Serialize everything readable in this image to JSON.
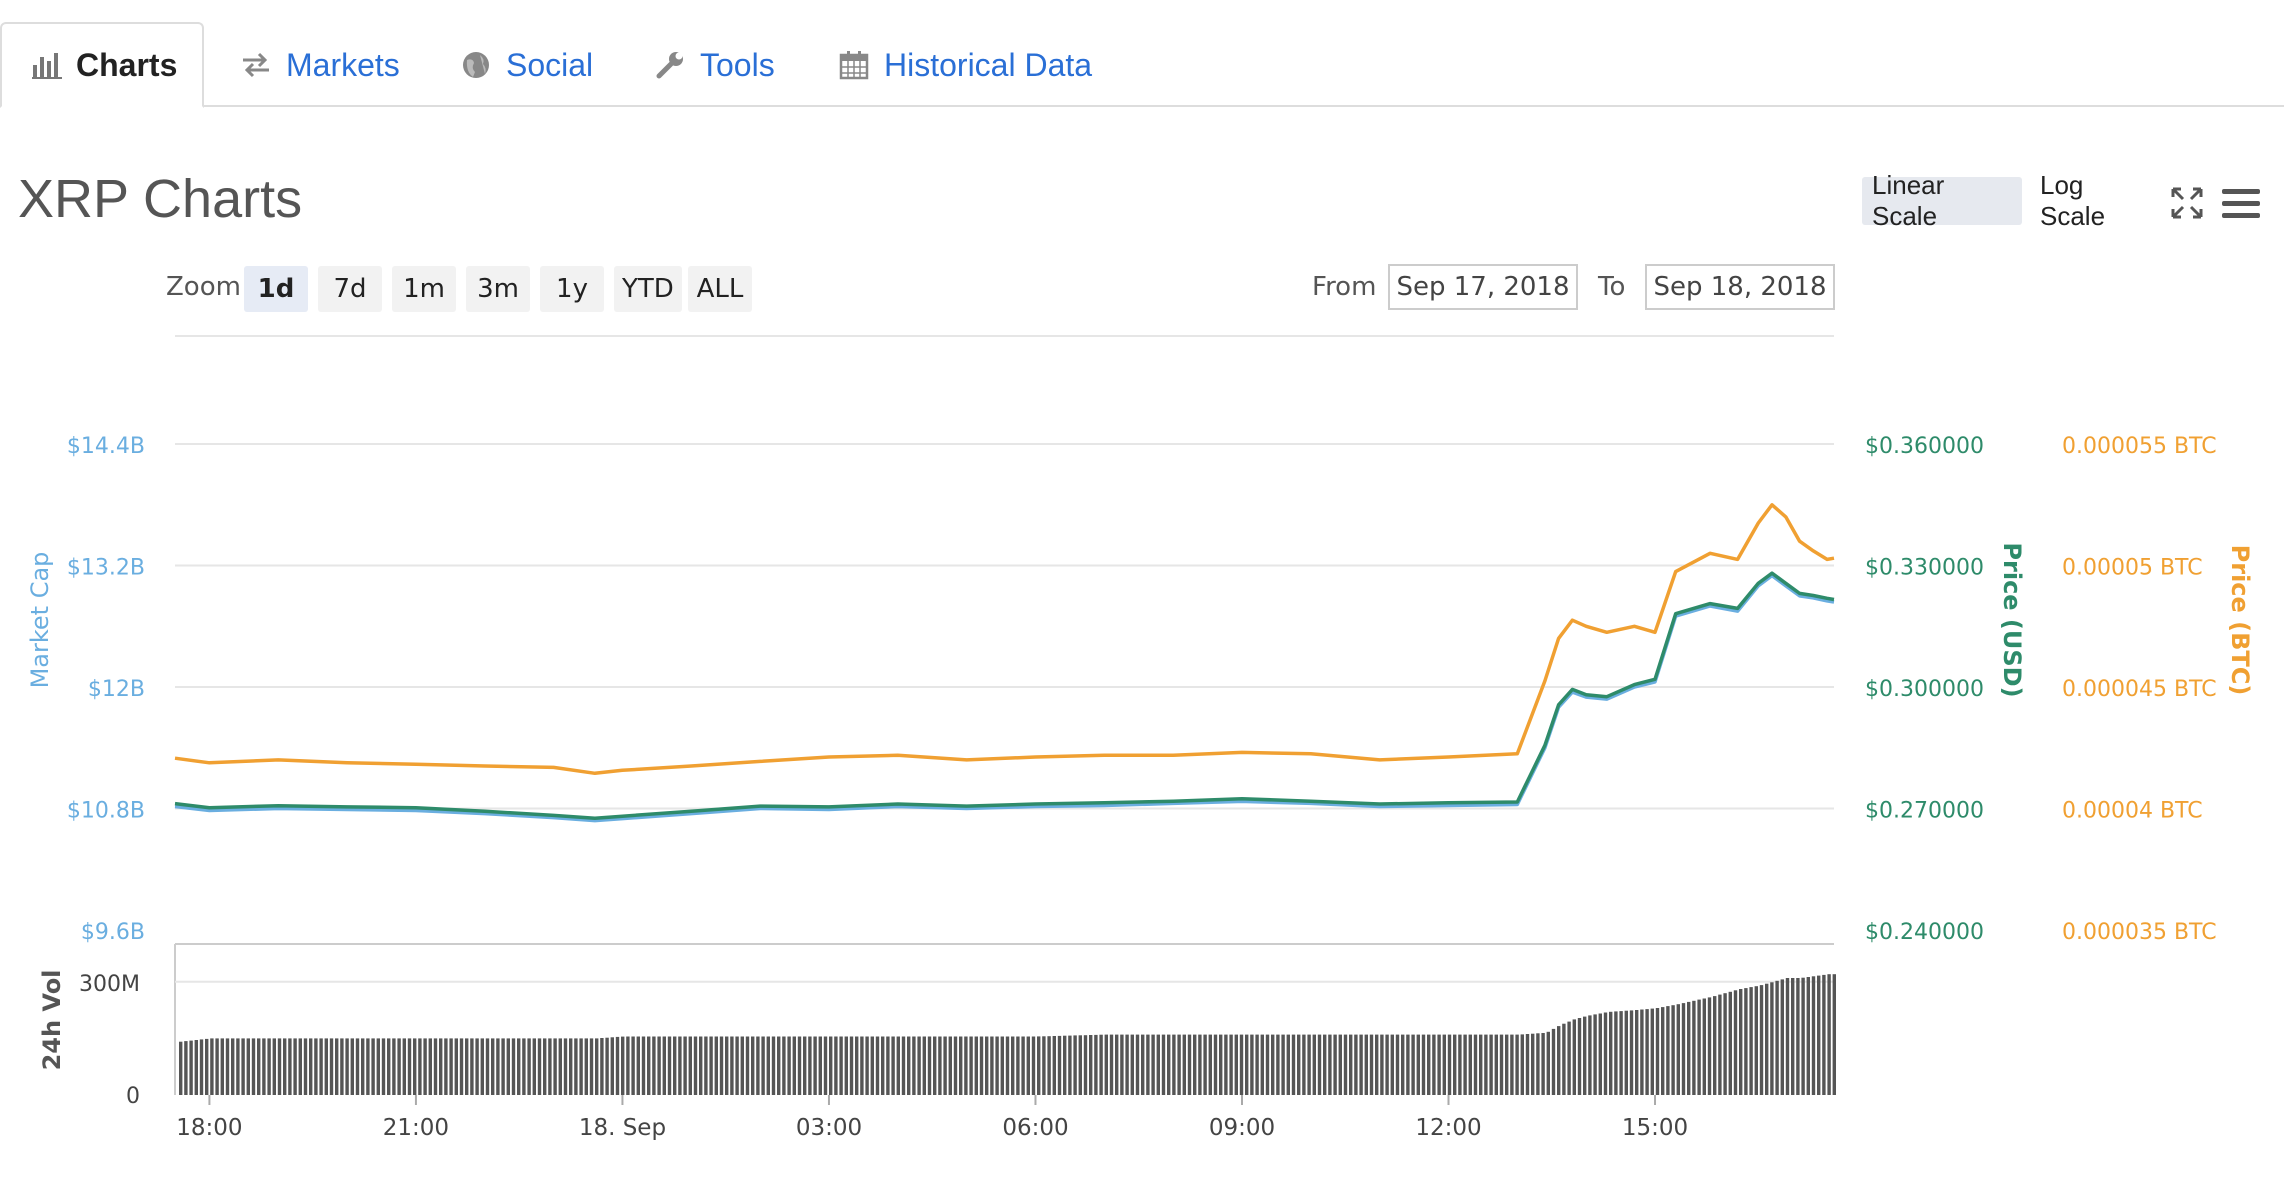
{
  "tabs": [
    {
      "label": "Charts",
      "icon": "bar-chart-icon",
      "active": true
    },
    {
      "label": "Markets",
      "icon": "exchange-arrows-icon",
      "active": false
    },
    {
      "label": "Social",
      "icon": "globe-icon",
      "active": false
    },
    {
      "label": "Tools",
      "icon": "wrench-icon",
      "active": false
    },
    {
      "label": "Historical Data",
      "icon": "calendar-icon",
      "active": false
    }
  ],
  "title": "XRP Charts",
  "scale": {
    "linear": "Linear Scale",
    "log": "Log Scale",
    "active": "linear"
  },
  "zoom": {
    "label": "Zoom",
    "options": [
      "1d",
      "7d",
      "1m",
      "3m",
      "1y",
      "YTD",
      "ALL"
    ],
    "active": "1d"
  },
  "range": {
    "from_label": "From",
    "from": "Sep 17, 2018",
    "to_label": "To",
    "to": "Sep 18, 2018"
  },
  "colors": {
    "market_cap": "#6aaee0",
    "price_usd": "#2e8b6a",
    "price_btc": "#f0a032",
    "volume": "#555555",
    "grid": "#e6e6e6",
    "tab_link": "#2a6fd6"
  },
  "chart_data": {
    "type": "line",
    "axes": {
      "market_cap": {
        "label": "Market Cap",
        "ticks": [
          "$14.4B",
          "$13.2B",
          "$12B",
          "$10.8B",
          "$9.6B"
        ],
        "range": [
          9.6,
          14.4
        ],
        "unit": "B USD"
      },
      "price_usd": {
        "label": "Price (USD)",
        "ticks": [
          "$0.360000",
          "$0.330000",
          "$0.300000",
          "$0.270000",
          "$0.240000"
        ],
        "range": [
          0.24,
          0.36
        ]
      },
      "price_btc": {
        "label": "Price (BTC)",
        "ticks": [
          "0.000055 BTC",
          "0.00005 BTC",
          "0.000045 BTC",
          "0.00004 BTC",
          "0.000035 BTC"
        ],
        "range": [
          3.5e-05,
          5.5e-05
        ]
      },
      "volume": {
        "label": "24h Vol",
        "ticks": [
          "300M",
          "0"
        ],
        "range": [
          0,
          400
        ]
      },
      "x": {
        "ticks": [
          "18:00",
          "21:00",
          "18. Sep",
          "03:00",
          "06:00",
          "09:00",
          "12:00",
          "15:00"
        ],
        "tick_hours": [
          18,
          21,
          24,
          27,
          30,
          33,
          36,
          39
        ],
        "range_hours": [
          17.5,
          41.6
        ]
      }
    },
    "x_hours": [
      17.5,
      18.0,
      19.0,
      20.0,
      21.0,
      22.0,
      23.0,
      23.6,
      24.0,
      25.0,
      26.0,
      27.0,
      28.0,
      29.0,
      30.0,
      31.0,
      32.0,
      33.0,
      34.0,
      35.0,
      36.0,
      37.0,
      37.4,
      37.6,
      37.8,
      38.0,
      38.3,
      38.7,
      39.0,
      39.3,
      39.8,
      40.2,
      40.5,
      40.7,
      40.9,
      41.1,
      41.3,
      41.5,
      41.6
    ],
    "series": [
      {
        "name": "Market Cap",
        "axis": "market_cap",
        "values": [
          10.82,
          10.78,
          10.8,
          10.79,
          10.78,
          10.75,
          10.71,
          10.68,
          10.7,
          10.75,
          10.8,
          10.79,
          10.82,
          10.8,
          10.82,
          10.83,
          10.85,
          10.87,
          10.85,
          10.82,
          10.83,
          10.84,
          11.4,
          11.8,
          11.95,
          11.9,
          11.88,
          12.0,
          12.05,
          12.7,
          12.8,
          12.75,
          13.0,
          13.1,
          13.0,
          12.9,
          12.88,
          12.85,
          12.84
        ]
      },
      {
        "name": "Price (USD)",
        "axis": "price_usd",
        "values": [
          0.2712,
          0.2702,
          0.2707,
          0.2704,
          0.2702,
          0.2693,
          0.2683,
          0.2676,
          0.2681,
          0.2693,
          0.2706,
          0.2704,
          0.2711,
          0.2706,
          0.2711,
          0.2714,
          0.2718,
          0.2724,
          0.2718,
          0.2711,
          0.2714,
          0.2716,
          0.2856,
          0.2956,
          0.2994,
          0.2981,
          0.2976,
          0.3006,
          0.3019,
          0.3181,
          0.3206,
          0.3194,
          0.3256,
          0.3281,
          0.3256,
          0.3231,
          0.3226,
          0.3219,
          0.3216
        ]
      },
      {
        "name": "Price (BTC)",
        "axis": "price_btc",
        "values": [
          4.207e-05,
          4.188e-05,
          4.2e-05,
          4.188e-05,
          4.182e-05,
          4.175e-05,
          4.169e-05,
          4.145e-05,
          4.157e-05,
          4.175e-05,
          4.194e-05,
          4.212e-05,
          4.219e-05,
          4.2e-05,
          4.212e-05,
          4.219e-05,
          4.219e-05,
          4.231e-05,
          4.225e-05,
          4.2e-05,
          4.212e-05,
          4.225e-05,
          4.525e-05,
          4.7e-05,
          4.775e-05,
          4.75e-05,
          4.725e-05,
          4.75e-05,
          4.725e-05,
          4.975e-05,
          5.05e-05,
          5.025e-05,
          5.175e-05,
          5.25e-05,
          5.2e-05,
          5.1e-05,
          5.06e-05,
          5.025e-05,
          5.03e-05
        ]
      },
      {
        "name": "24h Vol",
        "axis": "volume",
        "values": [
          140,
          150,
          150,
          150,
          150,
          150,
          150,
          150,
          155,
          155,
          155,
          155,
          155,
          155,
          155,
          160,
          160,
          160,
          160,
          160,
          160,
          160,
          165,
          185,
          200,
          210,
          220,
          225,
          230,
          240,
          260,
          280,
          290,
          300,
          310,
          310,
          315,
          320,
          320
        ]
      }
    ]
  }
}
